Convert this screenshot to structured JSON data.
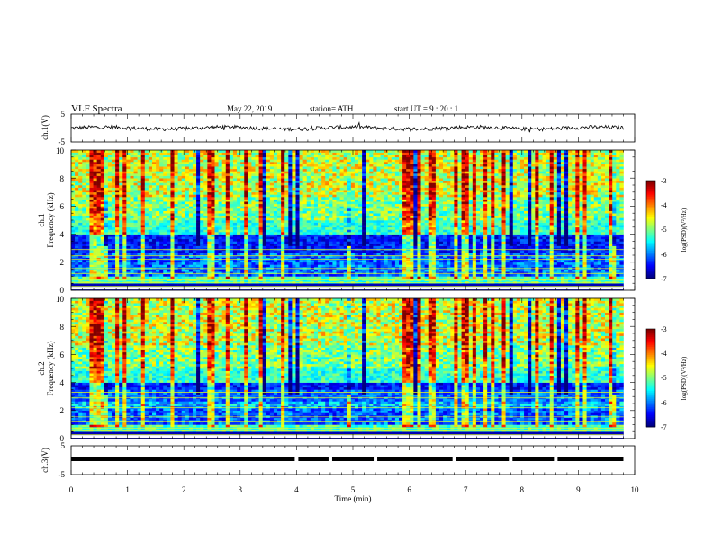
{
  "header": {
    "title": "VLF  Spectra",
    "date": "May 22, 2019",
    "station": "station= ATH",
    "start": "start  UT  =    9  : 20 : 1"
  },
  "chart_data": [
    {
      "type": "line",
      "title": "",
      "ylabel": "ch.1(V)",
      "ylim": [
        -5,
        5
      ],
      "yticks": [
        "5",
        "-5"
      ],
      "series": [
        {
          "values": [
            0
          ]
        }
      ],
      "note_values": "ch.1 waveform fluctuates around 0 V with amplitude ~±1 V"
    },
    {
      "type": "heatmap",
      "ylabel_line1": "ch.1",
      "ylabel_line2": "Frequency (kHz)",
      "ylim": [
        0,
        10
      ],
      "yticks": [
        "0",
        "2",
        "4",
        "6",
        "8",
        "10"
      ],
      "colorbar": {
        "label": "log(PSD)(V²/Hz)",
        "range": [
          -7,
          -3
        ],
        "ticks": [
          "-3",
          "-4",
          "-5",
          "-6",
          "-7"
        ]
      }
    },
    {
      "type": "heatmap",
      "ylabel_line1": "ch.2",
      "ylabel_line2": "Frequency (kHz)",
      "ylim": [
        0,
        10
      ],
      "yticks": [
        "0",
        "2",
        "4",
        "6",
        "8",
        "10"
      ],
      "colorbar": {
        "label": "log(PSD)(V²/Hz)",
        "range": [
          -7,
          -3
        ],
        "ticks": [
          "-3",
          "-4",
          "-5",
          "-6",
          "-7"
        ]
      }
    },
    {
      "type": "line",
      "ylabel": "ch.3(V)",
      "ylim": [
        -5,
        5
      ],
      "yticks": [
        "5",
        "-5"
      ],
      "series": [
        {
          "values": [
            0
          ]
        }
      ],
      "gaps_min": [
        4.0,
        4.6,
        5.4,
        6.8,
        7.8,
        8.6
      ]
    }
  ],
  "xaxis": {
    "label": "Time  (min)",
    "range": [
      0,
      10
    ],
    "ticks": [
      "0",
      "1",
      "2",
      "3",
      "4",
      "5",
      "6",
      "7",
      "8",
      "9",
      "10"
    ],
    "data_end_min": 9.8
  }
}
